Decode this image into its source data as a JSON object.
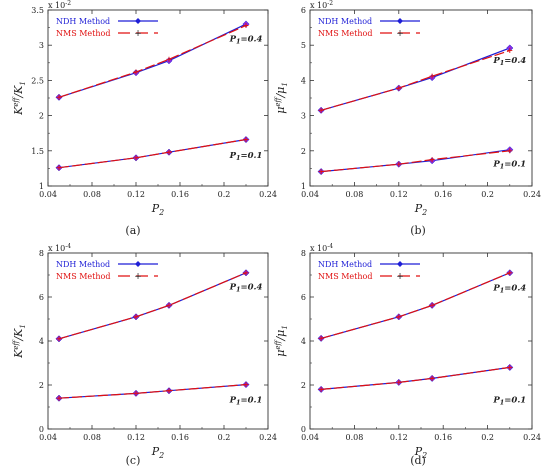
{
  "chart_data": [
    {
      "type": "line",
      "panel_label": "(a)",
      "xlabel_base": "P",
      "xlabel_sub": "2",
      "ylabel_num": "K",
      "ylabel_num_sup": "eff",
      "ylabel_den": "K",
      "ylabel_den_sub": "1",
      "y_exponent_base": "x 10",
      "y_exponent": "-2",
      "xlim": [
        0.04,
        0.24
      ],
      "ylim": [
        1,
        3.5
      ],
      "x_ticks": [
        "0.04",
        "0.08",
        "0.12",
        "0.16",
        "0.2",
        "0.24"
      ],
      "y_ticks": [
        "1",
        "1.5",
        "2",
        "2.5",
        "3",
        "3.5"
      ],
      "legend_position": "top-left",
      "legend": [
        "NDH Method",
        "NMS Method"
      ],
      "annotations": [
        {
          "text_base": "P",
          "text_sub": "1",
          "text_value": "=0.4",
          "x": 0.22,
          "y": 3.05
        },
        {
          "text_base": "P",
          "text_sub": "1",
          "text_value": "=0.1",
          "x": 0.22,
          "y": 1.4
        }
      ],
      "series": [
        {
          "method": "NDH",
          "p1": "0.4",
          "x": [
            0.05,
            0.12,
            0.15,
            0.22
          ],
          "y": [
            2.26,
            2.61,
            2.78,
            3.3
          ]
        },
        {
          "method": "NMS",
          "p1": "0.4",
          "x": [
            0.05,
            0.12,
            0.15,
            0.22
          ],
          "y": [
            2.26,
            2.62,
            2.8,
            3.28
          ]
        },
        {
          "method": "NDH",
          "p1": "0.1",
          "x": [
            0.05,
            0.12,
            0.15,
            0.22
          ],
          "y": [
            1.26,
            1.4,
            1.48,
            1.66
          ]
        },
        {
          "method": "NMS",
          "p1": "0.1",
          "x": [
            0.05,
            0.12,
            0.15,
            0.22
          ],
          "y": [
            1.26,
            1.4,
            1.48,
            1.66
          ]
        }
      ]
    },
    {
      "type": "line",
      "panel_label": "(b)",
      "xlabel_base": "P",
      "xlabel_sub": "2",
      "ylabel_num": "μ",
      "ylabel_num_sup": "eff",
      "ylabel_den": "μ",
      "ylabel_den_sub": "1",
      "y_exponent_base": "x 10",
      "y_exponent": "-2",
      "xlim": [
        0.04,
        0.24
      ],
      "ylim": [
        1,
        6
      ],
      "x_ticks": [
        "0.04",
        "0.08",
        "0.12",
        "0.16",
        "0.2",
        "0.24"
      ],
      "y_ticks": [
        "1",
        "2",
        "3",
        "4",
        "5",
        "6"
      ],
      "legend_position": "top-left",
      "legend": [
        "NDH Method",
        "NMS Method"
      ],
      "annotations": [
        {
          "text_base": "P",
          "text_sub": "1",
          "text_value": "=0.4",
          "x": 0.22,
          "y": 4.5
        },
        {
          "text_base": "P",
          "text_sub": "1",
          "text_value": "=0.1",
          "x": 0.22,
          "y": 1.55
        }
      ],
      "series": [
        {
          "method": "NDH",
          "p1": "0.4",
          "x": [
            0.05,
            0.12,
            0.15,
            0.22
          ],
          "y": [
            3.15,
            3.78,
            4.08,
            4.92
          ]
        },
        {
          "method": "NMS",
          "p1": "0.4",
          "x": [
            0.05,
            0.12,
            0.15,
            0.22
          ],
          "y": [
            3.15,
            3.78,
            4.12,
            4.85
          ]
        },
        {
          "method": "NDH",
          "p1": "0.1",
          "x": [
            0.05,
            0.12,
            0.15,
            0.22
          ],
          "y": [
            1.41,
            1.62,
            1.72,
            2.03
          ]
        },
        {
          "method": "NMS",
          "p1": "0.1",
          "x": [
            0.05,
            0.12,
            0.15,
            0.22
          ],
          "y": [
            1.41,
            1.62,
            1.75,
            2.0
          ]
        }
      ]
    },
    {
      "type": "line",
      "panel_label": "(c)",
      "xlabel_base": "P",
      "xlabel_sub": "2",
      "ylabel_num": "K",
      "ylabel_num_sup": "eff",
      "ylabel_den": "K",
      "ylabel_den_sub": "1",
      "y_exponent_base": "x 10",
      "y_exponent": "-4",
      "xlim": [
        0.04,
        0.24
      ],
      "ylim": [
        0,
        8
      ],
      "x_ticks": [
        "0.04",
        "0.08",
        "0.12",
        "0.16",
        "0.2",
        "0.24"
      ],
      "y_ticks": [
        "0",
        "2",
        "4",
        "6",
        "8"
      ],
      "legend_position": "top-left",
      "legend": [
        "NDH Method",
        "NMS Method"
      ],
      "annotations": [
        {
          "text_base": "P",
          "text_sub": "1",
          "text_value": "=0.4",
          "x": 0.22,
          "y": 6.35
        },
        {
          "text_base": "P",
          "text_sub": "1",
          "text_value": "=0.1",
          "x": 0.22,
          "y": 1.2
        }
      ],
      "series": [
        {
          "method": "NDH",
          "p1": "0.4",
          "x": [
            0.05,
            0.12,
            0.15,
            0.22
          ],
          "y": [
            4.1,
            5.1,
            5.62,
            7.1
          ]
        },
        {
          "method": "NMS",
          "p1": "0.4",
          "x": [
            0.05,
            0.12,
            0.15,
            0.22
          ],
          "y": [
            4.1,
            5.1,
            5.62,
            7.1
          ]
        },
        {
          "method": "NDH",
          "p1": "0.1",
          "x": [
            0.05,
            0.12,
            0.15,
            0.22
          ],
          "y": [
            1.4,
            1.62,
            1.74,
            2.02
          ]
        },
        {
          "method": "NMS",
          "p1": "0.1",
          "x": [
            0.05,
            0.12,
            0.15,
            0.22
          ],
          "y": [
            1.4,
            1.62,
            1.74,
            2.02
          ]
        }
      ]
    },
    {
      "type": "line",
      "panel_label": "(d)",
      "xlabel_base": "P",
      "xlabel_sub": "2",
      "ylabel_num": "μ",
      "ylabel_num_sup": "eff",
      "ylabel_den": "μ",
      "ylabel_den_sub": "1",
      "y_exponent_base": "x 10",
      "y_exponent": "-4",
      "xlim": [
        0.04,
        0.24
      ],
      "ylim": [
        0,
        8
      ],
      "x_ticks": [
        "0.04",
        "0.08",
        "0.12",
        "0.16",
        "0.2",
        "0.24"
      ],
      "y_ticks": [
        "0",
        "2",
        "4",
        "6",
        "8"
      ],
      "legend_position": "top-left",
      "legend": [
        "NDH Method",
        "NMS Method"
      ],
      "annotations": [
        {
          "text_base": "P",
          "text_sub": "1",
          "text_value": "=0.4",
          "x": 0.22,
          "y": 6.3
        },
        {
          "text_base": "P",
          "text_sub": "1",
          "text_value": "=0.1",
          "x": 0.22,
          "y": 1.2
        }
      ],
      "series": [
        {
          "method": "NDH",
          "p1": "0.4",
          "x": [
            0.05,
            0.12,
            0.15,
            0.22
          ],
          "y": [
            4.12,
            5.1,
            5.62,
            7.1
          ]
        },
        {
          "method": "NMS",
          "p1": "0.4",
          "x": [
            0.05,
            0.12,
            0.15,
            0.22
          ],
          "y": [
            4.12,
            5.1,
            5.62,
            7.1
          ]
        },
        {
          "method": "NDH",
          "p1": "0.1",
          "x": [
            0.05,
            0.12,
            0.15,
            0.22
          ],
          "y": [
            1.8,
            2.12,
            2.3,
            2.8
          ]
        },
        {
          "method": "NMS",
          "p1": "0.1",
          "x": [
            0.05,
            0.12,
            0.15,
            0.22
          ],
          "y": [
            1.8,
            2.12,
            2.3,
            2.8
          ]
        }
      ]
    }
  ],
  "colors": {
    "ndh": "#1f1fd6",
    "nms": "#e01010",
    "marker_overlap": "#8a2be2",
    "axis": "#333333"
  }
}
